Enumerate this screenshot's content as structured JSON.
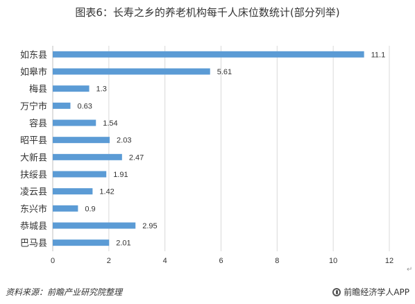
{
  "title": "图表6：长寿之乡的养老机构每千人床位数统计(部分列举)",
  "source": "资料来源：前瞻产业研究院整理",
  "brand": "前瞻经济学人APP",
  "corner_mark": "↵",
  "colors": {
    "bar": "#5b9bd5",
    "grid": "#d9d9d9",
    "axis": "#bfbfbf"
  },
  "chart_data": {
    "type": "bar",
    "orientation": "horizontal",
    "categories": [
      "如东县",
      "如皋市",
      "梅县",
      "万宁市",
      "容县",
      "昭平县",
      "大新县",
      "扶绥县",
      "凌云县",
      "东兴市",
      "恭城县",
      "巴马县"
    ],
    "values": [
      11.1,
      5.61,
      1.3,
      0.63,
      1.54,
      2.03,
      2.47,
      1.91,
      1.42,
      0.9,
      2.95,
      2.01
    ],
    "value_labels": [
      "11.1",
      "5.61",
      "1.3",
      "0.63",
      "1.54",
      "2.03",
      "2.47",
      "1.91",
      "1.42",
      "0.9",
      "2.95",
      "2.01"
    ],
    "xlim": [
      0,
      12
    ],
    "xticks": [
      "0",
      "2",
      "4",
      "6",
      "8",
      "10",
      "12"
    ],
    "grid": true
  }
}
